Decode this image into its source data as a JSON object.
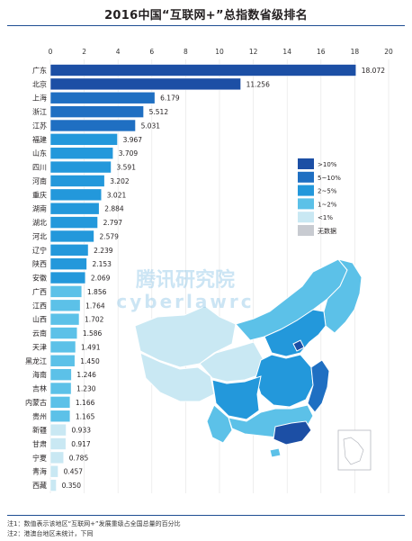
{
  "title": "2016中国“互联网+”总指数省级排名",
  "notes": [
    "注1：数值表示该地区“互联网+”发展重级占全国总量的百分比",
    "注2：港澳台地区未统计，下同"
  ],
  "watermark": {
    "line1": "腾讯研究院",
    "line2": "cyberlawrc"
  },
  "map_legend": [
    {
      "label": ">10%",
      "color": "#1c4fa5"
    },
    {
      "label": "5~10%",
      "color": "#1f6fc2"
    },
    {
      "label": "2~5%",
      "color": "#2398db"
    },
    {
      "label": "1~2%",
      "color": "#5cc1e8"
    },
    {
      "label": "<1%",
      "color": "#c9e8f3"
    },
    {
      "label": "无数据",
      "color": "#c8cbd1"
    }
  ],
  "chart_data": {
    "type": "bar",
    "orientation": "horizontal",
    "title": "2016中国“互联网+”总指数省级排名",
    "xlim": [
      0,
      20
    ],
    "x_ticks": [
      "0",
      "2",
      "4",
      "6",
      "8",
      "10",
      "12",
      "14",
      "16",
      "18",
      "20"
    ],
    "grid": true,
    "categories": [
      "广东",
      "北京",
      "上海",
      "浙江",
      "江苏",
      "福建",
      "山东",
      "四川",
      "河南",
      "重庆",
      "湖南",
      "湖北",
      "河北",
      "辽宁",
      "陕西",
      "安徽",
      "广西",
      "江西",
      "山西",
      "云南",
      "天津",
      "黑龙江",
      "海南",
      "吉林",
      "内蒙古",
      "贵州",
      "新疆",
      "甘肃",
      "宁夏",
      "青海",
      "西藏"
    ],
    "values": [
      18.072,
      11.256,
      6.179,
      5.512,
      5.031,
      3.967,
      3.709,
      3.591,
      3.202,
      3.021,
      2.884,
      2.797,
      2.579,
      2.239,
      2.153,
      2.069,
      1.856,
      1.764,
      1.702,
      1.586,
      1.491,
      1.45,
      1.246,
      1.23,
      1.166,
      1.165,
      0.933,
      0.917,
      0.785,
      0.457,
      0.35
    ],
    "value_labels": [
      "18.072",
      "11.256",
      "6.179",
      "5.512",
      "5.031",
      "3.967",
      "3.709",
      "3.591",
      "3.202",
      "3.021",
      "2.884",
      "2.797",
      "2.579",
      "2.239",
      "2.153",
      "2.069",
      "1.856",
      "1.764",
      "1.702",
      "1.586",
      "1.491",
      "1.450",
      "1.246",
      "1.230",
      "1.166",
      "1.165",
      "0.933",
      "0.917",
      "0.785",
      "0.457",
      "0.350"
    ]
  }
}
